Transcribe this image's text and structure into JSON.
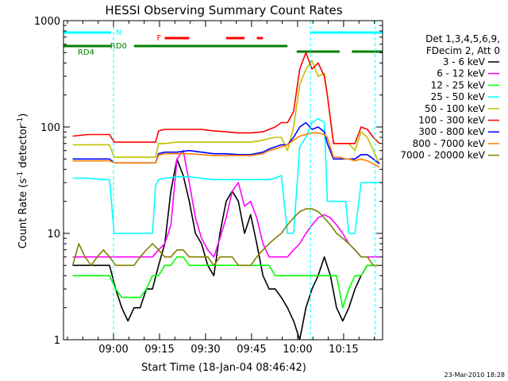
{
  "chart_data": {
    "type": "line",
    "title": "HESSI Observing Summary Count Rates",
    "xlabel": "Start Time (18-Jan-04 08:46:42)",
    "ylabel": "Count Rate (s",
    "ylabel_sup": "-1",
    "ylabel_tail": " detector",
    "ylabel_sup2": "-1",
    "ylabel_close": ")",
    "x_unit": "minutes after 08:46:42",
    "xlim": [
      -3,
      101
    ],
    "ylim": [
      1,
      1000
    ],
    "y_scale": "log",
    "x_ticks": [
      {
        "label": "09:00",
        "t": 13.3
      },
      {
        "label": "09:15",
        "t": 28.3
      },
      {
        "label": "09:30",
        "t": 43.3
      },
      {
        "label": "09:45",
        "t": 58.3
      },
      {
        "label": "10:00",
        "t": 73.3
      },
      {
        "label": "10:15",
        "t": 88.3
      }
    ],
    "y_ticks": [
      {
        "label": "1",
        "v": 1
      },
      {
        "label": "10",
        "v": 10
      },
      {
        "label": "100",
        "v": 100
      },
      {
        "label": "1000",
        "v": 1000
      }
    ],
    "legend_header": [
      "Det 1,3,4,5,6,9,",
      "FDecim 2, Att 0"
    ],
    "series": [
      {
        "name": "3 - 6 keV",
        "color": "#000000",
        "x": [
          0,
          5,
          10,
          12,
          14,
          16,
          18,
          20,
          22,
          24,
          26,
          28,
          30,
          32,
          34,
          36,
          38,
          40,
          42,
          44,
          46,
          48,
          50,
          52,
          54,
          56,
          58,
          60,
          62,
          64,
          66,
          68,
          70,
          72,
          74,
          76,
          78,
          80,
          82,
          84,
          86,
          88,
          90,
          92,
          94,
          96,
          98,
          100
        ],
        "y": [
          5,
          5,
          5,
          5,
          3,
          2,
          1.5,
          2,
          2,
          3,
          3,
          5,
          8,
          25,
          50,
          35,
          20,
          10,
          8,
          5,
          4,
          10,
          20,
          25,
          20,
          10,
          15,
          8,
          4,
          3,
          3,
          2.5,
          2,
          1.5,
          1,
          2,
          3,
          4,
          6,
          4,
          2,
          1.5,
          2,
          3,
          4,
          5,
          5,
          5
        ]
      },
      {
        "name": "6 - 12 keV",
        "color": "#ff00ff",
        "x": [
          0,
          5,
          10,
          12,
          14,
          16,
          18,
          20,
          22,
          24,
          26,
          28,
          30,
          32,
          34,
          36,
          38,
          40,
          42,
          44,
          46,
          48,
          50,
          52,
          54,
          56,
          58,
          60,
          62,
          64,
          66,
          68,
          70,
          72,
          74,
          76,
          78,
          80,
          82,
          84,
          86,
          88,
          90,
          92,
          94,
          96,
          98,
          100
        ],
        "y": [
          6,
          6,
          6,
          6,
          6,
          6,
          6,
          6,
          6,
          6,
          6,
          7,
          8,
          12,
          50,
          60,
          30,
          14,
          9,
          7,
          6,
          9,
          14,
          25,
          30,
          18,
          20,
          14,
          8,
          6,
          6,
          6,
          6,
          7,
          8,
          10,
          12,
          14,
          15,
          14,
          12,
          10,
          8,
          7,
          6,
          6,
          6,
          6
        ]
      },
      {
        "name": "12 - 25 keV",
        "color": "#00ff00",
        "x": [
          0,
          5,
          10,
          12,
          14,
          16,
          18,
          20,
          22,
          24,
          26,
          28,
          30,
          32,
          34,
          36,
          38,
          40,
          42,
          44,
          46,
          48,
          50,
          52,
          54,
          56,
          58,
          60,
          62,
          64,
          66,
          68,
          70,
          72,
          74,
          76,
          78,
          80,
          82,
          84,
          86,
          88,
          90,
          92,
          94,
          96,
          98,
          100
        ],
        "y": [
          4,
          4,
          4,
          4,
          3,
          2.5,
          2.5,
          2.5,
          2.5,
          3,
          4,
          4,
          5,
          5,
          6,
          6,
          5,
          5,
          5,
          5,
          5,
          5,
          5,
          5,
          5,
          5,
          5,
          5,
          5,
          5,
          4,
          4,
          4,
          4,
          4,
          4,
          4,
          4,
          4,
          4,
          4,
          2,
          3,
          4,
          4,
          5,
          5,
          5
        ]
      },
      {
        "name": "25 - 50 keV",
        "color": "#00ffff",
        "x": [
          0,
          5,
          10,
          11,
          12,
          13.5,
          16,
          18,
          20,
          22,
          26,
          27,
          28,
          30,
          34,
          38,
          42,
          46,
          50,
          54,
          58,
          62,
          64,
          66,
          68,
          70,
          72,
          74,
          76,
          78,
          80,
          82,
          83,
          85,
          87,
          89,
          90,
          92,
          94,
          96,
          98,
          100
        ],
        "y": [
          33,
          33,
          32,
          32,
          32,
          10,
          10,
          10,
          10,
          10,
          10,
          28,
          32,
          33,
          34,
          34,
          33,
          32,
          32,
          32,
          32,
          32,
          32,
          33,
          35,
          10,
          10,
          65,
          80,
          110,
          120,
          110,
          20,
          20,
          20,
          20,
          10,
          10,
          30,
          30,
          30,
          30
        ]
      },
      {
        "name": "50 - 100 keV",
        "color": "#c0c000",
        "x": [
          0,
          5,
          10,
          12,
          13.5,
          16,
          20,
          24,
          27,
          28,
          30,
          34,
          38,
          42,
          46,
          50,
          54,
          58,
          62,
          64,
          66,
          68,
          70,
          72,
          74,
          76,
          78,
          80,
          82,
          83,
          85,
          87,
          89,
          90,
          92,
          94,
          96,
          98,
          100
        ],
        "y": [
          68,
          68,
          68,
          68,
          52,
          52,
          52,
          52,
          52,
          70,
          70,
          72,
          72,
          72,
          72,
          72,
          72,
          72,
          75,
          78,
          80,
          80,
          60,
          100,
          250,
          350,
          420,
          300,
          320,
          200,
          70,
          70,
          70,
          70,
          60,
          90,
          80,
          60,
          45
        ]
      },
      {
        "name": "100 - 300 keV",
        "color": "#ff0000",
        "x": [
          0,
          5,
          10,
          12,
          13.5,
          16,
          20,
          24,
          27,
          28,
          30,
          34,
          38,
          42,
          46,
          50,
          54,
          58,
          62,
          64,
          66,
          68,
          70,
          72,
          74,
          76,
          78,
          80,
          82,
          83,
          85,
          87,
          89,
          90,
          92,
          94,
          96,
          98,
          100
        ],
        "y": [
          82,
          85,
          85,
          85,
          72,
          72,
          72,
          72,
          72,
          92,
          95,
          95,
          95,
          95,
          92,
          90,
          88,
          88,
          90,
          95,
          100,
          110,
          110,
          140,
          350,
          500,
          350,
          400,
          300,
          200,
          70,
          70,
          70,
          70,
          70,
          100,
          95,
          80,
          70
        ]
      },
      {
        "name": "300 - 800 keV",
        "color": "#0000ff",
        "x": [
          0,
          5,
          10,
          12,
          13.5,
          16,
          20,
          24,
          27,
          28,
          30,
          34,
          38,
          42,
          46,
          50,
          54,
          58,
          62,
          64,
          66,
          68,
          70,
          72,
          74,
          76,
          78,
          80,
          82,
          83,
          85,
          87,
          89,
          90,
          92,
          94,
          96,
          98,
          100
        ],
        "y": [
          50,
          50,
          50,
          50,
          46,
          46,
          46,
          46,
          46,
          56,
          58,
          58,
          60,
          58,
          56,
          56,
          55,
          55,
          58,
          62,
          65,
          68,
          68,
          80,
          100,
          110,
          95,
          100,
          90,
          70,
          50,
          50,
          50,
          50,
          50,
          55,
          55,
          50,
          45
        ]
      },
      {
        "name": "800 - 7000 keV",
        "color": "#ff8000",
        "x": [
          0,
          5,
          10,
          12,
          13.5,
          16,
          20,
          24,
          27,
          28,
          30,
          34,
          38,
          42,
          46,
          50,
          54,
          58,
          62,
          64,
          66,
          68,
          70,
          72,
          74,
          76,
          78,
          80,
          82,
          83,
          85,
          87,
          89,
          90,
          92,
          94,
          96,
          98,
          100
        ],
        "y": [
          48,
          48,
          48,
          48,
          46,
          46,
          46,
          46,
          46,
          54,
          56,
          56,
          56,
          55,
          54,
          54,
          54,
          54,
          56,
          60,
          62,
          65,
          68,
          75,
          82,
          85,
          88,
          88,
          85,
          80,
          52,
          52,
          50,
          50,
          48,
          50,
          48,
          45,
          42
        ]
      },
      {
        "name": "7000 - 20000 keV",
        "color": "#808000",
        "x": [
          0,
          2,
          4,
          6,
          8,
          10,
          12,
          14,
          16,
          18,
          20,
          22,
          24,
          26,
          28,
          30,
          32,
          34,
          36,
          38,
          40,
          42,
          44,
          46,
          48,
          50,
          52,
          54,
          56,
          58,
          60,
          62,
          64,
          66,
          68,
          70,
          72,
          74,
          76,
          78,
          80,
          82,
          84,
          86,
          88,
          90,
          92,
          94,
          96,
          98,
          100
        ],
        "y": [
          5,
          8,
          6,
          5,
          6,
          7,
          6,
          5,
          5,
          5,
          5,
          6,
          7,
          8,
          7,
          6,
          6,
          7,
          7,
          6,
          6,
          6,
          6,
          5,
          6,
          6,
          6,
          5,
          5,
          5,
          6,
          7,
          8,
          9,
          10,
          12,
          14,
          16,
          17,
          17,
          16,
          14,
          12,
          10,
          9,
          8,
          7,
          6,
          6,
          5,
          5
        ]
      }
    ],
    "flags": [
      {
        "label": "N",
        "color": "#00ffff",
        "segments": [
          [
            -3,
            12.5
          ],
          [
            77.5,
            101
          ]
        ]
      },
      {
        "label": "F",
        "color": "#ff0000",
        "segments": [
          [
            30,
            38
          ],
          [
            50,
            56
          ],
          [
            60,
            62
          ]
        ]
      },
      {
        "label": "RD0",
        "color": "#008000",
        "segments": [
          [
            20,
            70
          ]
        ]
      },
      {
        "label": "RD4",
        "color": "#008000",
        "segments": [
          [
            -3,
            12.5
          ]
        ]
      },
      {
        "label": "",
        "color": "#008000",
        "segments": [
          [
            73,
            87
          ],
          [
            91,
            101
          ]
        ]
      }
    ],
    "vlines": [
      {
        "t": 13.3,
        "color": "#00ffff"
      },
      {
        "t": 77.5,
        "color": "#00ffff"
      },
      {
        "t": 98.5,
        "color": "#00ffff"
      }
    ],
    "grid": false,
    "legend_placement": "right"
  },
  "stamp": "23-Mar-2010 18:28"
}
